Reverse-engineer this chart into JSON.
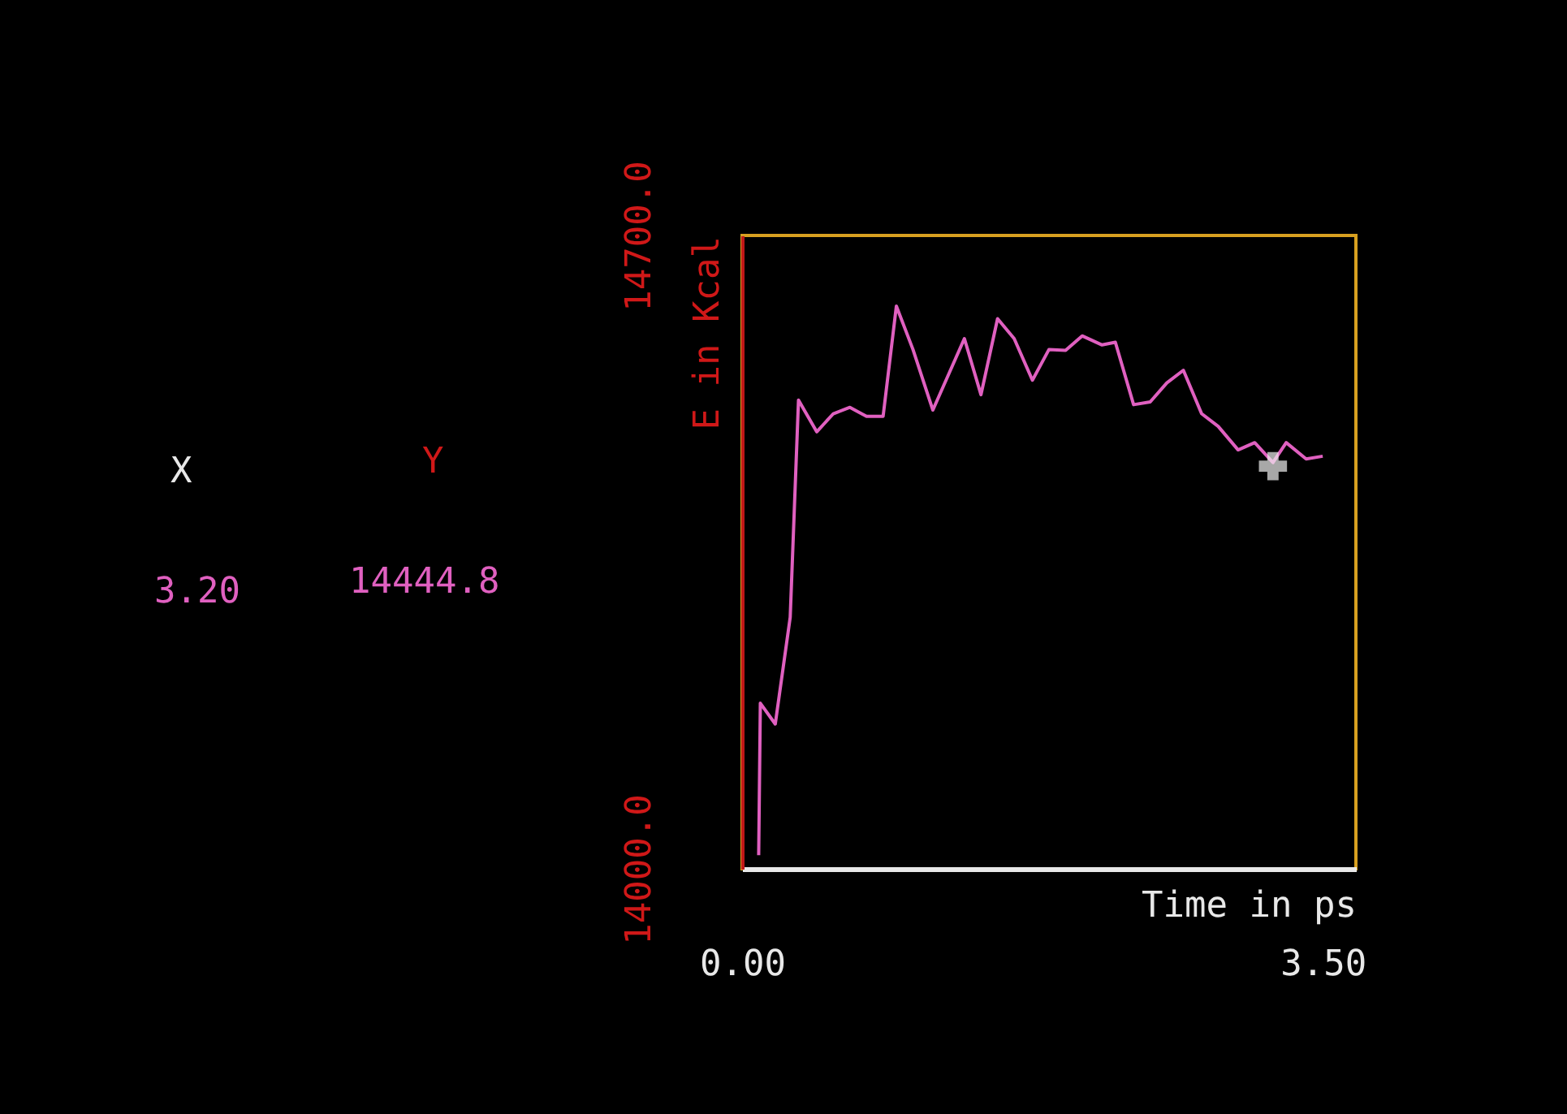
{
  "chart_data": {
    "type": "line",
    "xlabel": "Time in ps",
    "ylabel": "E in Kcal",
    "xlim": [
      0,
      3.7
    ],
    "xticks": [
      {
        "value": 0,
        "label": "0.00"
      },
      {
        "value": 3.5,
        "label": "3.50"
      }
    ],
    "ylim": [
      14000,
      14700
    ],
    "yticks": [
      {
        "value": 14000,
        "label": "14000.0"
      },
      {
        "value": 14700,
        "label": "14700.0"
      }
    ],
    "annotations": [
      "X",
      "Y",
      "3.20",
      "14444.8"
    ],
    "series": [
      {
        "color": "#e060c0",
        "x": [
          0.1,
          0.11,
          0.2,
          0.29,
          0.34,
          0.45,
          0.55,
          0.65,
          0.75,
          0.85,
          0.93,
          1.03,
          1.15,
          1.34,
          1.44,
          1.54,
          1.64,
          1.75,
          1.85,
          1.95,
          2.05,
          2.17,
          2.25,
          2.36,
          2.46,
          2.56,
          2.66,
          2.77,
          2.87,
          2.99,
          3.09,
          3.2,
          3.28,
          3.4,
          3.5
        ],
        "values": [
          14015,
          14183,
          14160,
          14278,
          14518,
          14483,
          14503,
          14510,
          14500,
          14500,
          14622,
          14574,
          14507,
          14586,
          14524,
          14608,
          14586,
          14540,
          14574,
          14573,
          14589,
          14579,
          14582,
          14513,
          14516,
          14537,
          14551,
          14503,
          14489,
          14463,
          14471,
          14449,
          14471,
          14453,
          14456
        ]
      },
      {
        "type": "scatter",
        "marker": "cross",
        "color": "#f0f0f0",
        "x": [
          3.2
        ],
        "values": [
          14445
        ]
      }
    ]
  }
}
